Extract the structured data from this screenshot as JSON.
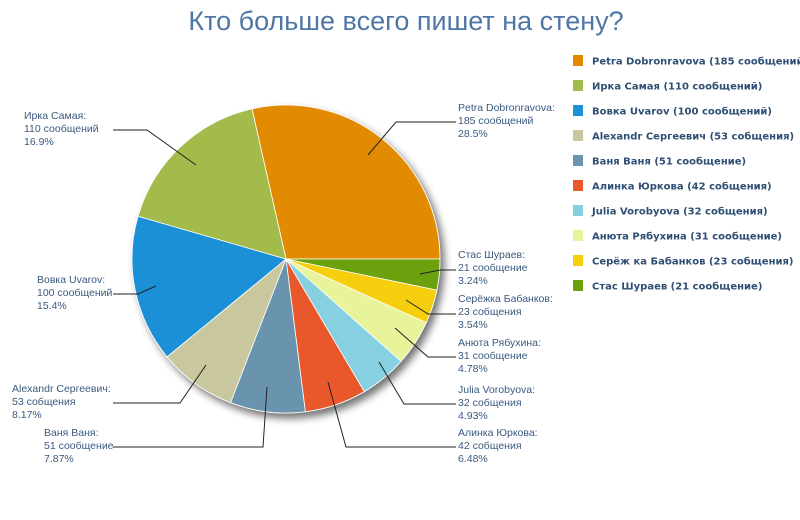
{
  "chart_data": {
    "type": "pie",
    "title": "Кто больше всего пишет на стену?",
    "unit_text": "сообщений",
    "slices": [
      {
        "name": "Petra Dobronravova",
        "value": 185,
        "percent_text": "28.5%",
        "count_text": "185 сообщений",
        "legend_label": "Petra Dobronravova (185 сообщений)",
        "callout_name": "Petra Dobronravova:",
        "color": "#e28a00"
      },
      {
        "name": "Стас Шураев",
        "value": 21,
        "percent_text": "3.24%",
        "count_text": "21 сообщение",
        "legend_label": "Стас Шураев (21 сообщение)",
        "callout_name": "Стас Шураев:",
        "color": "#6aa10a"
      },
      {
        "name": "Серёжка Бабанков",
        "value": 23,
        "percent_text": "3.54%",
        "count_text": "23 собщения",
        "legend_label": "Серёж ка Бабанков (23 собщения)",
        "callout_name": "Серёжка Бабанков:",
        "color": "#f5cf0f"
      },
      {
        "name": "Анюта Рябухина",
        "value": 31,
        "percent_text": "4.78%",
        "count_text": "31 сообщение",
        "legend_label": "Анюта Рябухина (31 сообщение)",
        "callout_name": "Анюта Рябухина:",
        "color": "#e9f49a"
      },
      {
        "name": "Julia Vorobyova",
        "value": 32,
        "percent_text": "4.93%",
        "count_text": "32 собщения",
        "legend_label": "Julia Vorobyova (32 собщения)",
        "callout_name": "Julia Vorobyova:",
        "color": "#86d0e2"
      },
      {
        "name": "Алинка Юркова",
        "value": 42,
        "percent_text": "6.48%",
        "count_text": "42 собщения",
        "legend_label": "Алинка Юркова (42 собщения)",
        "callout_name": "Алинка Юркова:",
        "color": "#e8592a"
      },
      {
        "name": "Ваня Ваня",
        "value": 51,
        "percent_text": "7.87%",
        "count_text": "51 сообщение",
        "legend_label": "Ваня Ваня (51 сообщение)",
        "callout_name": "Ваня Ваня:",
        "color": "#6b94ae"
      },
      {
        "name": "Alexandr Сергеевич",
        "value": 53,
        "percent_text": "8.17%",
        "count_text": "53 собщения",
        "legend_label": "Alexandr Сергеевич (53 собщения)",
        "callout_name": "Alexandr Сергеевич:",
        "color": "#c8c79e"
      },
      {
        "name": "Вовка Uvarov",
        "value": 100,
        "percent_text": "15.4%",
        "count_text": "100 сообщений",
        "legend_label": "Вовка Uvarov (100 сообщений)",
        "callout_name": "Вовка Uvarov:",
        "color": "#1e90d6"
      },
      {
        "name": "Ирка Самая",
        "value": 110,
        "percent_text": "16.9%",
        "count_text": "110 сообщений",
        "legend_label": "Ирка Самая (110 сообщений)",
        "callout_name": "Ирка Самая:",
        "color": "#a3bb4b"
      }
    ],
    "legend_order": [
      "Petra Dobronravova",
      "Ирка Самая",
      "Вовка Uvarov",
      "Alexandr Сергеевич",
      "Ваня Ваня",
      "Алинка Юркова",
      "Julia Vorobyova",
      "Анюта Рябухина",
      "Серёжка Бабанков",
      "Стас Шураев"
    ],
    "legend_placement": "right",
    "labels": "callouts with leader lines"
  }
}
